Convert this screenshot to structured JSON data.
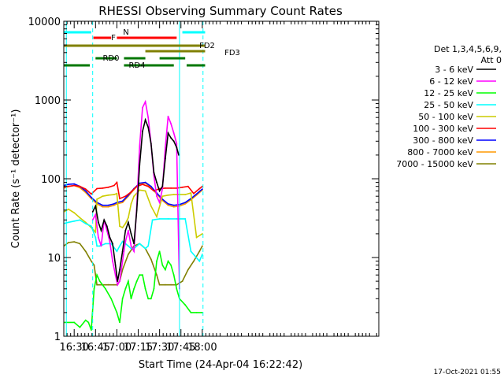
{
  "chart_data": {
    "type": "line",
    "title": "RHESSI Observing Summary Count Rates",
    "xlabel": "Start Time (24-Apr-04 16:22:42)",
    "ylabel": "Count Rate (s⁻¹ detector⁻¹)",
    "x_unit": "minutes of day",
    "xlim": [
      1582.7,
      1804
    ],
    "ylim": [
      1,
      10000
    ],
    "y_scale": "log",
    "x_ticks": [
      {
        "value": 1590,
        "label": "16:30"
      },
      {
        "value": 1605,
        "label": "16:45"
      },
      {
        "value": 1620,
        "label": "17:00"
      },
      {
        "value": 1635,
        "label": "17:15"
      },
      {
        "value": 1650,
        "label": "17:30"
      },
      {
        "value": 1665,
        "label": "17:45"
      },
      {
        "value": 1680,
        "label": "18:00"
      }
    ],
    "y_ticks": [
      {
        "value": 1,
        "label": "1"
      },
      {
        "value": 10,
        "label": "10"
      },
      {
        "value": 100,
        "label": "100"
      },
      {
        "value": 1000,
        "label": "1000"
      },
      {
        "value": 10000,
        "label": "10000"
      }
    ],
    "legend_header": [
      "Det 1,3,4,5,6,9,",
      "Att 0"
    ],
    "legend_position": "right",
    "series": [
      {
        "name": "3 - 6 keV",
        "color": "#000000",
        "x": [
          1603,
          1605,
          1607,
          1609,
          1611,
          1613,
          1615,
          1617,
          1619,
          1620.5,
          1622,
          1624,
          1626,
          1628,
          1630,
          1632,
          1634,
          1636,
          1638,
          1640,
          1642,
          1644,
          1646,
          1648,
          1650,
          1652,
          1654,
          1656,
          1658,
          1660,
          1662,
          1663.5
        ],
        "y": [
          38,
          45,
          28,
          22,
          30,
          25,
          18,
          15,
          8,
          5,
          7,
          12,
          22,
          28,
          20,
          15,
          40,
          150,
          400,
          560,
          450,
          280,
          120,
          90,
          70,
          80,
          180,
          380,
          330,
          300,
          250,
          200
        ]
      },
      {
        "name": "6 - 12 keV",
        "color": "#ff00ff",
        "x": [
          1603,
          1605,
          1607,
          1609,
          1611,
          1613,
          1615,
          1617,
          1619,
          1620.5,
          1622,
          1624,
          1626,
          1628,
          1630,
          1632,
          1634,
          1636,
          1638,
          1640,
          1642,
          1644,
          1646,
          1648,
          1650,
          1652,
          1654,
          1656,
          1658,
          1660,
          1662,
          1664
        ],
        "y": [
          30,
          35,
          18,
          14,
          30,
          22,
          16,
          9,
          6,
          4.5,
          5,
          9,
          16,
          22,
          14,
          12,
          45,
          260,
          800,
          950,
          600,
          280,
          110,
          60,
          50,
          75,
          250,
          620,
          500,
          380,
          280,
          4
        ]
      },
      {
        "name": "12 - 25 keV",
        "color": "#00ff00",
        "x": [
          1582.7,
          1590,
          1594,
          1598,
          1600,
          1602,
          1604,
          1606,
          1608,
          1612,
          1616,
          1620,
          1622,
          1624,
          1626,
          1628,
          1630,
          1632,
          1634,
          1636,
          1638,
          1640,
          1642,
          1644,
          1646,
          1648,
          1650,
          1652,
          1654,
          1656,
          1658,
          1660,
          1662,
          1664,
          1668,
          1672,
          1676,
          1680
        ],
        "y": [
          1.5,
          1.5,
          1.3,
          1.6,
          1.5,
          1.2,
          4,
          6,
          5,
          4,
          3,
          2,
          1.5,
          3,
          4,
          5,
          3,
          4,
          5,
          6,
          6,
          4,
          3,
          3,
          4,
          9,
          12,
          8,
          7,
          9,
          8,
          6,
          4,
          3,
          2.5,
          2,
          2,
          2
        ]
      },
      {
        "name": "25 - 50 keV",
        "color": "#00ffff",
        "x": [
          1582.7,
          1586,
          1590,
          1594,
          1598,
          1602,
          1605,
          1606,
          1608,
          1612,
          1616,
          1620,
          1622,
          1624,
          1626,
          1628,
          1630,
          1632,
          1634,
          1636,
          1638,
          1640,
          1642,
          1645,
          1650,
          1656,
          1662,
          1668,
          1672,
          1678,
          1680
        ],
        "y": [
          27,
          28,
          29,
          30,
          27,
          25,
          18,
          14,
          14,
          15,
          15,
          12,
          14,
          16,
          15,
          14,
          13,
          13,
          14,
          15,
          14,
          13,
          14,
          30,
          31,
          31,
          31,
          31,
          12,
          9,
          11
        ]
      },
      {
        "name": "50 - 100 keV",
        "color": "#cccc00",
        "x": [
          1582.7,
          1586,
          1590,
          1594,
          1598,
          1602,
          1605,
          1606,
          1610,
          1614,
          1618,
          1620,
          1622,
          1624,
          1626,
          1628,
          1630,
          1632,
          1636,
          1640,
          1644,
          1648,
          1652,
          1656,
          1660,
          1664,
          1668,
          1672,
          1676,
          1680
        ],
        "y": [
          38,
          41,
          37,
          32,
          28,
          24,
          21,
          55,
          60,
          62,
          63,
          65,
          25,
          24,
          27,
          32,
          48,
          60,
          72,
          70,
          45,
          33,
          60,
          62,
          63,
          63,
          63,
          66,
          18,
          20
        ]
      },
      {
        "name": "100 - 300 keV",
        "color": "#ff0000",
        "x": [
          1582.7,
          1586,
          1590,
          1594,
          1598,
          1602,
          1606,
          1610,
          1614,
          1618,
          1620,
          1622,
          1626,
          1630,
          1634,
          1638,
          1642,
          1646,
          1650,
          1654,
          1658,
          1662,
          1666,
          1670,
          1674,
          1678,
          1680
        ],
        "y": [
          78,
          80,
          82,
          80,
          74,
          64,
          75,
          76,
          78,
          82,
          90,
          56,
          60,
          68,
          80,
          85,
          80,
          70,
          75,
          76,
          76,
          76,
          78,
          80,
          65,
          75,
          80
        ]
      },
      {
        "name": "300 - 800 keV",
        "color": "#0000ff",
        "x": [
          1582.7,
          1586,
          1590,
          1594,
          1598,
          1602,
          1606,
          1610,
          1614,
          1618,
          1620,
          1624,
          1628,
          1632,
          1636,
          1640,
          1644,
          1648,
          1652,
          1656,
          1660,
          1664,
          1668,
          1672,
          1676,
          1680
        ],
        "y": [
          82,
          85,
          86,
          80,
          70,
          58,
          50,
          46,
          46,
          48,
          50,
          52,
          62,
          75,
          88,
          90,
          80,
          66,
          55,
          48,
          46,
          47,
          50,
          56,
          64,
          74
        ]
      },
      {
        "name": "800 - 7000 keV",
        "color": "#ff9900",
        "x": [
          1582.7,
          1586,
          1590,
          1594,
          1598,
          1602,
          1606,
          1610,
          1614,
          1618,
          1620,
          1624,
          1628,
          1632,
          1636,
          1640,
          1644,
          1648,
          1652,
          1656,
          1660,
          1664,
          1668,
          1672,
          1676,
          1680
        ],
        "y": [
          76,
          80,
          82,
          77,
          67,
          56,
          48,
          44,
          44,
          46,
          48,
          50,
          60,
          73,
          86,
          88,
          78,
          64,
          53,
          46,
          44,
          45,
          48,
          54,
          62,
          72
        ]
      },
      {
        "name": "7000 - 15000 keV",
        "color": "#808000",
        "x": [
          1582.7,
          1586,
          1590,
          1594,
          1598,
          1602,
          1604,
          1606,
          1610,
          1614,
          1618,
          1620,
          1622,
          1624,
          1628,
          1632,
          1636,
          1640,
          1644,
          1648,
          1650,
          1654,
          1658,
          1662,
          1666,
          1670,
          1674,
          1678,
          1680
        ],
        "y": [
          14,
          15.5,
          15.8,
          15,
          12,
          9,
          8,
          4.5,
          4.5,
          4.5,
          4.5,
          4.5,
          5,
          7,
          11,
          14,
          15,
          13,
          9.5,
          6,
          4.5,
          4.5,
          4.5,
          4.5,
          5,
          7,
          9,
          12,
          14
        ]
      }
    ],
    "flag_bars": [
      {
        "label": "N",
        "color": "#00ffff",
        "label_color": "#00ffff",
        "row": 1,
        "spans": [
          [
            1582.7,
            1602
          ],
          [
            1666,
            1682
          ]
        ]
      },
      {
        "label": "F",
        "color": "#ff0000",
        "label_color": "#ff0000",
        "row": 2,
        "spans": [
          [
            1603.5,
            1616
          ],
          [
            1620,
            1662
          ]
        ]
      },
      {
        "label": "FD2",
        "color": "#808000",
        "label_color": "#808000",
        "row": 3,
        "spans": [
          [
            1582.7,
            1682
          ]
        ]
      },
      {
        "label": "FD3",
        "color": "#808000",
        "label_color": "#808000",
        "row": 4,
        "spans": [
          [
            1640,
            1682
          ]
        ]
      },
      {
        "label": "RD0",
        "color": "#007700",
        "label_color": "#007700",
        "row": 5,
        "spans": [
          [
            1605,
            1620
          ],
          [
            1625,
            1640
          ],
          [
            1650,
            1668
          ]
        ]
      },
      {
        "label": "RD4",
        "color": "#007700",
        "label_color": "#007700",
        "row": 6,
        "spans": [
          [
            1582.7,
            1601
          ],
          [
            1625,
            1660
          ],
          [
            1669,
            1682
          ]
        ]
      }
    ],
    "vlines": [
      {
        "x": 1584.5,
        "color": "#00ffff",
        "style": "solid"
      },
      {
        "x": 1603,
        "color": "#00ffff",
        "style": "dashed"
      },
      {
        "x": 1664,
        "color": "#00ffff",
        "style": "solid"
      },
      {
        "x": 1680.5,
        "color": "#00ffff",
        "style": "dashed"
      }
    ],
    "grid": false
  },
  "footer": {
    "timestamp": "17-Oct-2021 01:55"
  }
}
